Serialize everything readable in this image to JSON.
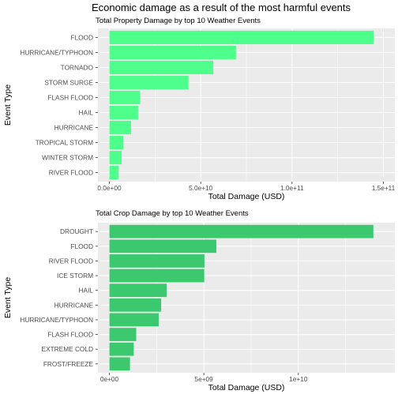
{
  "title": "Economic damage as a result of the most harmful events",
  "colors": {
    "panel_bg": "#EBEBEB",
    "grid": "#FFFFFF",
    "text": "#000000",
    "tick_text": "#4D4D4D",
    "property_bar": "#4EFF8B",
    "crop_bar": "#3CC86E"
  },
  "chart_data": [
    {
      "type": "bar",
      "orientation": "horizontal",
      "title": "Total Property Damage by top 10 Weather Events",
      "xlabel": "Total Damage (USD)",
      "ylabel": "Event Type",
      "xlim": [
        0,
        150000000000
      ],
      "xticks": [
        0,
        50000000000,
        100000000000,
        150000000000
      ],
      "xtick_labels": [
        "0.0e+00",
        "5.0e+10",
        "1.0e+11",
        "1.5e+11"
      ],
      "grid": true,
      "categories": [
        "FLOOD",
        "HURRICANE/TYPHOON",
        "TORNADO",
        "STORM SURGE",
        "FLASH FLOOD",
        "HAIL",
        "HURRICANE",
        "TROPICAL STORM",
        "WINTER STORM",
        "RIVER FLOOD"
      ],
      "values": [
        144700000000,
        69300000000,
        56900000000,
        43300000000,
        16800000000,
        15700000000,
        11900000000,
        7700000000,
        6700000000,
        5100000000
      ]
    },
    {
      "type": "bar",
      "orientation": "horizontal",
      "title": "Total Crop Damage by top 10 Weather Events",
      "xlabel": "Total Damage (USD)",
      "ylabel": "Event Type",
      "xlim": [
        0,
        14500000000
      ],
      "xticks": [
        0,
        5000000000,
        10000000000
      ],
      "xtick_labels": [
        "0e+00",
        "5e+09",
        "1e+10"
      ],
      "grid": true,
      "categories": [
        "DROUGHT",
        "FLOOD",
        "RIVER FLOOD",
        "ICE STORM",
        "HAIL",
        "HURRICANE",
        "HURRICANE/TYPHOON",
        "FLASH FLOOD",
        "EXTREME COLD",
        "FROST/FREEZE"
      ],
      "values": [
        13970000000,
        5660000000,
        5030000000,
        5020000000,
        3030000000,
        2740000000,
        2610000000,
        1420000000,
        1290000000,
        1090000000
      ]
    }
  ]
}
